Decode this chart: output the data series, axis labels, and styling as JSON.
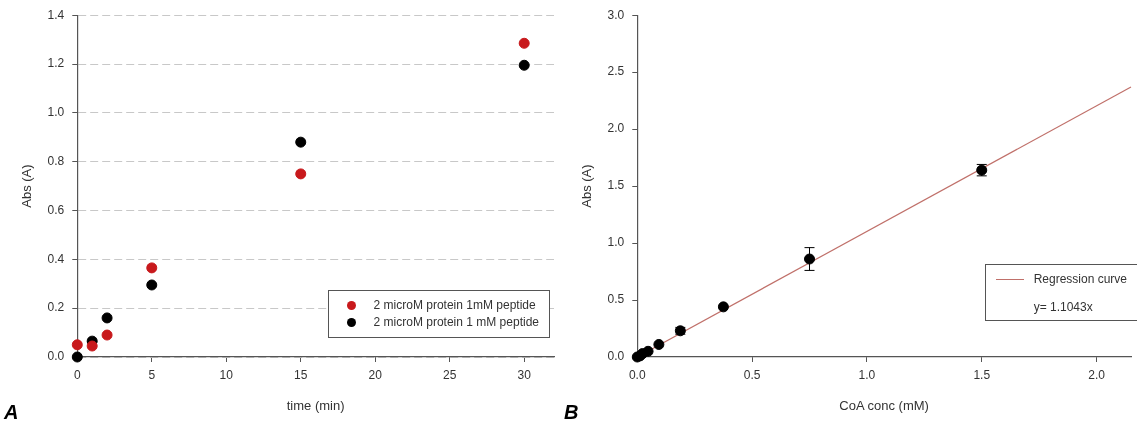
{
  "chart_data": [
    {
      "type": "scatter",
      "xlabel": "time (min)",
      "ylabel": "Abs (A)",
      "xlim": [
        0,
        32
      ],
      "xticks": [
        0,
        5,
        10,
        15,
        20,
        25,
        30
      ],
      "ylim": [
        0,
        1.4
      ],
      "yticks": [
        {
          "value": 0,
          "label": "0.0"
        },
        0.2,
        0.4,
        0.6,
        0.8,
        {
          "value": 1,
          "label": "1.0"
        },
        1.2,
        1.4
      ],
      "grid": "y",
      "legend": "bottom right",
      "marker": "circle",
      "annotations": [
        "A"
      ],
      "series": [
        {
          "name": "2 microM protein 1mM peptide",
          "color": "#c8191c",
          "x": [
            0,
            1,
            2,
            5,
            15,
            30
          ],
          "values": [
            0.05,
            0.045,
            0.09,
            0.365,
            0.75,
            1.285
          ]
        },
        {
          "name": "2 microM protein 1 mM peptide",
          "color": "#000000",
          "x": [
            0,
            1,
            2,
            5,
            15,
            30
          ],
          "values": [
            0,
            0.065,
            0.16,
            0.295,
            0.88,
            1.195
          ]
        }
      ]
    },
    {
      "type": "scatter",
      "xlabel": "CoA conc (mM)",
      "ylabel": "Abs (A)",
      "xlim": [
        0,
        2.15
      ],
      "xticks": [
        {
          "value": 0,
          "label": "0.0"
        },
        0.5,
        {
          "value": 1,
          "label": "1.0"
        },
        1.5,
        {
          "value": 2,
          "label": "2.0"
        }
      ],
      "ylim": [
        0,
        3
      ],
      "yticks": [
        {
          "value": 0,
          "label": "0.0"
        },
        0.5,
        {
          "value": 1,
          "label": "1.0"
        },
        1.5,
        {
          "value": 2,
          "label": "2.0"
        },
        2.5,
        {
          "value": 3,
          "label": "3.0"
        }
      ],
      "grid": false,
      "legend": "right",
      "marker": "circle",
      "annotations": [
        "y= 1.1043x",
        "B"
      ],
      "series": [
        {
          "color": "#000000",
          "x": [
            0,
            0.012,
            0.023,
            0.047,
            0.094,
            0.1875,
            0.375,
            0.75,
            1.5
          ],
          "values": [
            0,
            0.01,
            0.03,
            0.05,
            0.11,
            0.23,
            0.44,
            0.86,
            1.64
          ],
          "errors": [
            null,
            null,
            null,
            null,
            null,
            0.03,
            null,
            0.1,
            0.05
          ]
        },
        {
          "name": "Regression curve",
          "type": "line",
          "line_style": "solid",
          "marker": "none",
          "color": "#c0706a",
          "x": [
            0,
            2.15
          ],
          "values": [
            0,
            2.37
          ]
        }
      ]
    }
  ]
}
